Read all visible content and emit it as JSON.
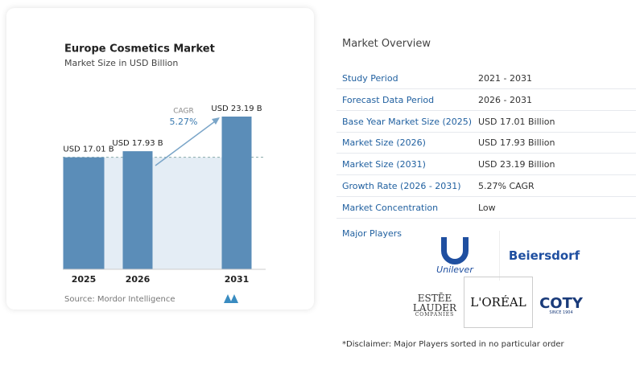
{
  "chart_data": {
    "type": "bar",
    "title": "Europe Cosmetics Market",
    "subtitle": "Market Size in USD Billion",
    "categories": [
      "2025",
      "2026",
      "2031"
    ],
    "values": [
      17.01,
      17.93,
      23.19
    ],
    "value_labels": [
      "USD 17.01 B",
      "USD 17.93 B",
      "USD 23.19 B"
    ],
    "color": "#5b8db8",
    "annotations": {
      "cagr_label": "CAGR",
      "cagr_value": "5.27%"
    },
    "source": "Source: Mordor Intelligence"
  },
  "overview": {
    "title": "Market Overview",
    "rows": [
      [
        "Study Period",
        "2021 - 2031"
      ],
      [
        "Forecast Data Period",
        "2026 - 2031"
      ],
      [
        "Base Year Market Size (2025)",
        "USD 17.01 Billion"
      ],
      [
        "Market Size (2026)",
        "USD 17.93 Billion"
      ],
      [
        "Market Size (2031)",
        "USD 23.19 Billion"
      ],
      [
        "Growth Rate (2026 - 2031)",
        "5.27% CAGR"
      ],
      [
        "Market Concentration",
        "Low"
      ]
    ],
    "players_title": "Major Players",
    "players": [
      "Unilever",
      "Beiersdorf",
      "ESTĒE",
      "LAUDER",
      "COMPANIES",
      "L'ORÉAL",
      "COTY",
      "SINCE 1904"
    ],
    "disclaimer": "*Disclaimer: Major Players sorted in no particular order"
  }
}
